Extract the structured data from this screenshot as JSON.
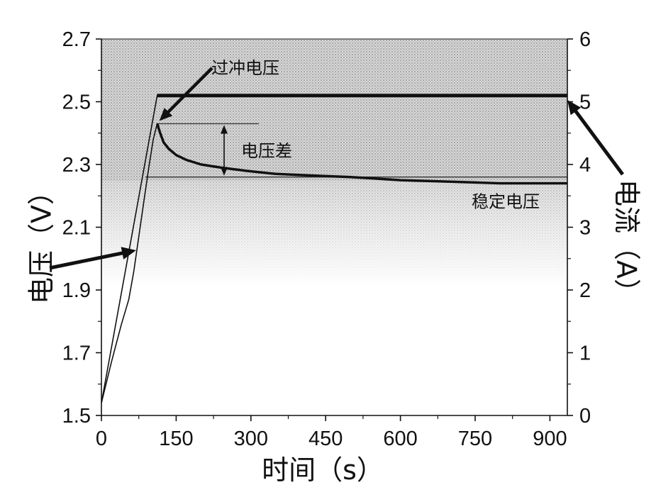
{
  "chart_data": {
    "type": "line",
    "xlabel": "时间（s）",
    "ylabel_left": "电压（V）",
    "ylabel_right": "电流（A）",
    "xlim": [
      0,
      935
    ],
    "ylim_left": [
      1.5,
      2.7
    ],
    "ylim_right": [
      0,
      6
    ],
    "x_ticks": [
      0,
      150,
      300,
      450,
      600,
      750,
      900
    ],
    "y_left_ticks": [
      1.5,
      1.7,
      1.9,
      2.1,
      2.3,
      2.5,
      2.7
    ],
    "y_right_ticks": [
      0,
      1,
      2,
      3,
      4,
      5,
      6
    ],
    "grid": false,
    "legend": "none",
    "series": [
      {
        "axis": "left",
        "x": [
          0,
          20,
          40,
          55,
          65,
          75,
          85,
          95,
          104,
          112,
          118,
          125,
          135,
          150,
          170,
          200,
          240,
          290,
          350,
          420,
          500,
          600,
          700,
          800,
          935
        ],
        "y": [
          1.54,
          1.67,
          1.79,
          1.87,
          1.96,
          2.07,
          2.18,
          2.29,
          2.38,
          2.43,
          2.4,
          2.37,
          2.35,
          2.33,
          2.315,
          2.3,
          2.29,
          2.28,
          2.27,
          2.265,
          2.26,
          2.25,
          2.245,
          2.24,
          2.24
        ]
      },
      {
        "axis": "right",
        "x": [
          0,
          112,
          935
        ],
        "y": [
          0.2,
          5.1,
          5.1
        ]
      }
    ],
    "annotations": [
      {
        "label": "过冲电压",
        "x": 112,
        "y": 2.43
      },
      {
        "label": "电压差",
        "y_from": 2.43,
        "y_to": 2.26
      },
      {
        "label": "稳定电压",
        "y": 2.24
      }
    ]
  },
  "colors": {
    "line": "#111111",
    "background_shade": "#d8d8d8"
  }
}
